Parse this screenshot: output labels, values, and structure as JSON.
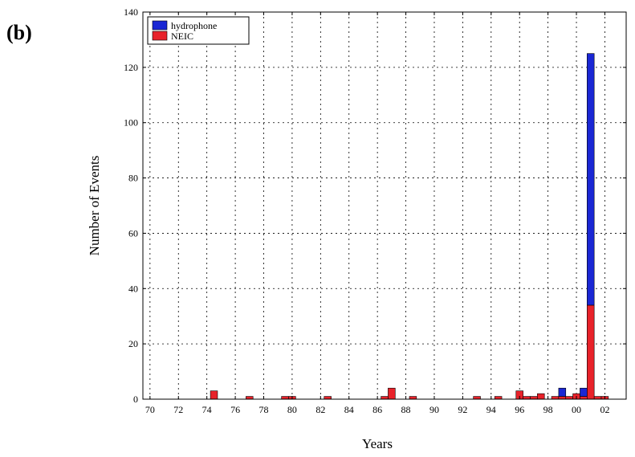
{
  "panel_label": "(b)",
  "chart_data": {
    "type": "bar",
    "stacked": true,
    "xlabel": "Years",
    "ylabel": "Number of Events",
    "xlim": [
      1969.5,
      2003.5
    ],
    "ylim": [
      0,
      140
    ],
    "x_ticks": [
      1970,
      1972,
      1974,
      1976,
      1978,
      1980,
      1982,
      1984,
      1986,
      1988,
      1990,
      1992,
      1994,
      1996,
      1998,
      2000,
      2002
    ],
    "x_tick_labels": [
      "70",
      "72",
      "74",
      "76",
      "78",
      "80",
      "82",
      "84",
      "86",
      "88",
      "90",
      "92",
      "94",
      "96",
      "98",
      "00",
      "02"
    ],
    "y_ticks": [
      0,
      20,
      40,
      60,
      80,
      100,
      120,
      140
    ],
    "y_tick_labels": [
      "0",
      "20",
      "40",
      "60",
      "80",
      "100",
      "120",
      "140"
    ],
    "bin_width": 0.5,
    "grid": true,
    "legend_position": "top-left",
    "series": [
      {
        "name": "NEIC",
        "color": "#e8222a",
        "points": [
          {
            "x": 1974.5,
            "y": 3
          },
          {
            "x": 1977.0,
            "y": 1
          },
          {
            "x": 1979.5,
            "y": 1
          },
          {
            "x": 1980.0,
            "y": 1
          },
          {
            "x": 1982.5,
            "y": 1
          },
          {
            "x": 1986.5,
            "y": 1
          },
          {
            "x": 1987.0,
            "y": 4
          },
          {
            "x": 1988.5,
            "y": 1
          },
          {
            "x": 1993.0,
            "y": 1
          },
          {
            "x": 1994.5,
            "y": 1
          },
          {
            "x": 1996.0,
            "y": 3
          },
          {
            "x": 1996.5,
            "y": 1
          },
          {
            "x": 1997.0,
            "y": 1
          },
          {
            "x": 1997.5,
            "y": 2
          },
          {
            "x": 1998.5,
            "y": 1
          },
          {
            "x": 1999.0,
            "y": 1
          },
          {
            "x": 1999.5,
            "y": 1
          },
          {
            "x": 2000.0,
            "y": 2
          },
          {
            "x": 2000.5,
            "y": 1
          },
          {
            "x": 2001.0,
            "y": 34
          },
          {
            "x": 2001.5,
            "y": 1
          },
          {
            "x": 2002.0,
            "y": 1
          }
        ]
      },
      {
        "name": "hydrophone",
        "color": "#1a27d4",
        "points": [
          {
            "x": 1999.0,
            "y": 3
          },
          {
            "x": 2000.5,
            "y": 3
          },
          {
            "x": 2001.0,
            "y": 91
          }
        ]
      }
    ]
  }
}
